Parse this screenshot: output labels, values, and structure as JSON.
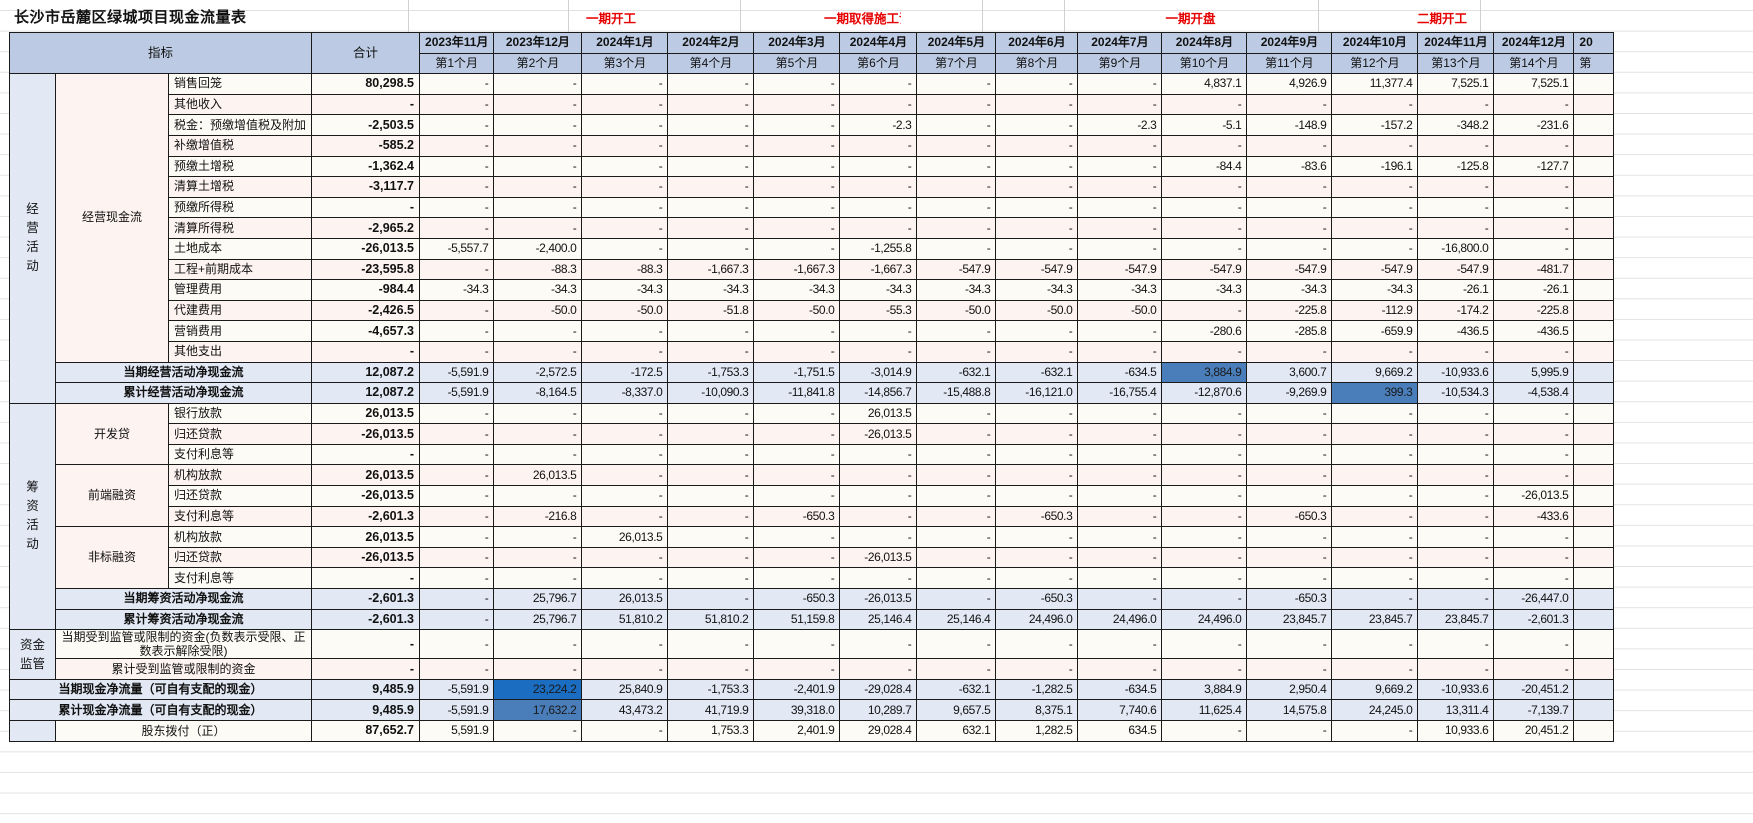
{
  "sheet": {
    "title": "长沙市岳麓区绿城项目现金流量表",
    "milestones": [
      {
        "label": "一期开工",
        "col": 2
      },
      {
        "label": "一期取得施工证",
        "col": 5
      },
      {
        "label": "一期开盘",
        "col": 9
      },
      {
        "label": "二期开工",
        "col": 12
      }
    ],
    "header": {
      "indicator": "指标",
      "total": "合计",
      "months": [
        "2023年11月",
        "2023年12月",
        "2024年1月",
        "2024年2月",
        "2024年3月",
        "2024年4月",
        "2024年5月",
        "2024年6月",
        "2024年7月",
        "2024年8月",
        "2024年9月",
        "2024年10月",
        "2024年11月",
        "2024年12月",
        "20"
      ],
      "periods": [
        "第1个月",
        "第2个月",
        "第3个月",
        "第4个月",
        "第5个月",
        "第6个月",
        "第7个月",
        "第8个月",
        "第9个月",
        "第10个月",
        "第11个月",
        "第12个月",
        "第13个月",
        "第14个月",
        "第"
      ]
    },
    "sections": {
      "operating": "经\n营\n活\n动",
      "operating_group": "经营现金流",
      "financing": "筹\n资\n活\n动",
      "dev_loan": "开发贷",
      "front_finance": "前端融资",
      "nonstd_finance": "非标融资",
      "fund_supervision": "资金\n监管"
    },
    "rows": {
      "sales": {
        "label": "销售回笼",
        "total": "80,298.5",
        "values": [
          "-",
          "-",
          "-",
          "-",
          "-",
          "-",
          "-",
          "-",
          "-",
          "4,837.1",
          "4,926.9",
          "11,377.4",
          "7,525.1",
          "7,525.1"
        ]
      },
      "other_income": {
        "label": "其他收入",
        "total": "-",
        "values": [
          "-",
          "-",
          "-",
          "-",
          "-",
          "-",
          "-",
          "-",
          "-",
          "-",
          "-",
          "-",
          "-",
          "-"
        ]
      },
      "vat_prepay": {
        "label": "税金：预缴增值税及附加",
        "total": "-2,503.5",
        "values": [
          "-",
          "-",
          "-",
          "-",
          "-",
          "-2.3",
          "-",
          "-",
          "-2.3",
          "-5.1",
          "-148.9",
          "-157.2",
          "-348.2",
          "-231.6"
        ]
      },
      "vat_supp": {
        "label": "补缴增值税",
        "total": "-585.2",
        "values": [
          "-",
          "-",
          "-",
          "-",
          "-",
          "-",
          "-",
          "-",
          "-",
          "-",
          "-",
          "-",
          "-",
          "-"
        ]
      },
      "lat_prepay": {
        "label": "预缴土增税",
        "total": "-1,362.4",
        "values": [
          "-",
          "-",
          "-",
          "-",
          "-",
          "-",
          "-",
          "-",
          "-",
          "-84.4",
          "-83.6",
          "-196.1",
          "-125.8",
          "-127.7"
        ]
      },
      "lat_settle": {
        "label": "清算土增税",
        "total": "-3,117.7",
        "values": [
          "-",
          "-",
          "-",
          "-",
          "-",
          "-",
          "-",
          "-",
          "-",
          "-",
          "-",
          "-",
          "-",
          "-"
        ]
      },
      "cit_prepay": {
        "label": "预缴所得税",
        "total": "-",
        "values": [
          "-",
          "-",
          "-",
          "-",
          "-",
          "-",
          "-",
          "-",
          "-",
          "-",
          "-",
          "-",
          "-",
          "-"
        ]
      },
      "cit_settle": {
        "label": "清算所得税",
        "total": "-2,965.2",
        "values": [
          "-",
          "-",
          "-",
          "-",
          "-",
          "-",
          "-",
          "-",
          "-",
          "-",
          "-",
          "-",
          "-",
          "-"
        ]
      },
      "land_cost": {
        "label": "土地成本",
        "total": "-26,013.5",
        "values": [
          "-5,557.7",
          "-2,400.0",
          "-",
          "-",
          "-",
          "-1,255.8",
          "-",
          "-",
          "-",
          "-",
          "-",
          "-",
          "-16,800.0",
          "-"
        ]
      },
      "construction": {
        "label": "工程+前期成本",
        "total": "-23,595.8",
        "values": [
          "-",
          "-88.3",
          "-88.3",
          "-1,667.3",
          "-1,667.3",
          "-1,667.3",
          "-547.9",
          "-547.9",
          "-547.9",
          "-547.9",
          "-547.9",
          "-547.9",
          "-547.9",
          "-481.7"
        ]
      },
      "admin": {
        "label": "管理费用",
        "total": "-984.4",
        "values": [
          "-34.3",
          "-34.3",
          "-34.3",
          "-34.3",
          "-34.3",
          "-34.3",
          "-34.3",
          "-34.3",
          "-34.3",
          "-34.3",
          "-34.3",
          "-34.3",
          "-26.1",
          "-26.1"
        ]
      },
      "agency": {
        "label": "代建费用",
        "total": "-2,426.5",
        "values": [
          "-",
          "-50.0",
          "-50.0",
          "-51.8",
          "-50.0",
          "-55.3",
          "-50.0",
          "-50.0",
          "-50.0",
          "-",
          "-225.8",
          "-112.9",
          "-174.2",
          "-225.8"
        ]
      },
      "marketing": {
        "label": "营销费用",
        "total": "-4,657.3",
        "values": [
          "-",
          "-",
          "-",
          "-",
          "-",
          "-",
          "-",
          "-",
          "-",
          "-280.6",
          "-285.8",
          "-659.9",
          "-436.5",
          "-436.5"
        ]
      },
      "other_exp": {
        "label": "其他支出",
        "total": "-",
        "values": [
          "-",
          "-",
          "-",
          "-",
          "-",
          "-",
          "-",
          "-",
          "-",
          "-",
          "-",
          "-",
          "-",
          "-"
        ]
      },
      "op_net": {
        "label": "当期经营活动净现金流",
        "total": "12,087.2",
        "values": [
          "-5,591.9",
          "-2,572.5",
          "-172.5",
          "-1,753.3",
          "-1,751.5",
          "-3,014.9",
          "-632.1",
          "-632.1",
          "-634.5",
          "3,884.9",
          "3,600.7",
          "9,669.2",
          "-10,933.6",
          "5,995.9"
        ]
      },
      "op_cum": {
        "label": "累计经营活动净现金流",
        "total": "12,087.2",
        "values": [
          "-5,591.9",
          "-8,164.5",
          "-8,337.0",
          "-10,090.3",
          "-11,841.8",
          "-14,856.7",
          "-15,488.8",
          "-16,121.0",
          "-16,755.4",
          "-12,870.6",
          "-9,269.9",
          "399.3",
          "-10,534.3",
          "-4,538.4"
        ]
      },
      "bank_loan": {
        "label": "银行放款",
        "total": "26,013.5",
        "values": [
          "-",
          "-",
          "-",
          "-",
          "-",
          "26,013.5",
          "-",
          "-",
          "-",
          "-",
          "-",
          "-",
          "-",
          "-"
        ]
      },
      "bank_repay": {
        "label": "归还贷款",
        "total": "-26,013.5",
        "values": [
          "-",
          "-",
          "-",
          "-",
          "-",
          "-26,013.5",
          "-",
          "-",
          "-",
          "-",
          "-",
          "-",
          "-",
          "-"
        ]
      },
      "bank_interest": {
        "label": "支付利息等",
        "total": "-",
        "values": [
          "-",
          "-",
          "-",
          "-",
          "-",
          "-",
          "-",
          "-",
          "-",
          "-",
          "-",
          "-",
          "-",
          "-"
        ]
      },
      "front_loan": {
        "label": "机构放款",
        "total": "26,013.5",
        "values": [
          "-",
          "26,013.5",
          "-",
          "-",
          "-",
          "-",
          "-",
          "-",
          "-",
          "-",
          "-",
          "-",
          "-",
          "-"
        ]
      },
      "front_repay": {
        "label": "归还贷款",
        "total": "-26,013.5",
        "values": [
          "-",
          "-",
          "-",
          "-",
          "-",
          "-",
          "-",
          "-",
          "-",
          "-",
          "-",
          "-",
          "-",
          "-26,013.5"
        ]
      },
      "front_interest": {
        "label": "支付利息等",
        "total": "-2,601.3",
        "values": [
          "-",
          "-216.8",
          "-",
          "-",
          "-650.3",
          "-",
          "-",
          "-650.3",
          "-",
          "-",
          "-650.3",
          "-",
          "-",
          "-433.6"
        ]
      },
      "ns_loan": {
        "label": "机构放款",
        "total": "26,013.5",
        "values": [
          "-",
          "-",
          "26,013.5",
          "-",
          "-",
          "-",
          "-",
          "-",
          "-",
          "-",
          "-",
          "-",
          "-",
          "-"
        ]
      },
      "ns_repay": {
        "label": "归还贷款",
        "total": "-26,013.5",
        "values": [
          "-",
          "-",
          "-",
          "-",
          "-",
          "-26,013.5",
          "-",
          "-",
          "-",
          "-",
          "-",
          "-",
          "-",
          "-"
        ]
      },
      "ns_interest": {
        "label": "支付利息等",
        "total": "-",
        "values": [
          "-",
          "-",
          "-",
          "-",
          "-",
          "-",
          "-",
          "-",
          "-",
          "-",
          "-",
          "-",
          "-",
          "-"
        ]
      },
      "fin_net": {
        "label": "当期筹资活动净现金流",
        "total": "-2,601.3",
        "values": [
          "-",
          "25,796.7",
          "26,013.5",
          "-",
          "-650.3",
          "-26,013.5",
          "-",
          "-650.3",
          "-",
          "-",
          "-650.3",
          "-",
          "-",
          "-26,447.0"
        ]
      },
      "fin_cum": {
        "label": "累计筹资活动净现金流",
        "total": "-2,601.3",
        "values": [
          "-",
          "25,796.7",
          "51,810.2",
          "51,810.2",
          "51,159.8",
          "25,146.4",
          "25,146.4",
          "24,496.0",
          "24,496.0",
          "24,496.0",
          "23,845.7",
          "23,845.7",
          "23,845.7",
          "-2,601.3"
        ]
      },
      "restricted": {
        "label": "当期受到监管或限制的资金(负数表示受限、正数表示解除受限)",
        "total": "-",
        "values": [
          "-",
          "-",
          "-",
          "-",
          "-",
          "-",
          "-",
          "-",
          "-",
          "-",
          "-",
          "-",
          "-",
          "-"
        ]
      },
      "restricted_cum": {
        "label": "累计受到监管或限制的资金",
        "total": "-",
        "values": [
          "-",
          "-",
          "-",
          "-",
          "-",
          "-",
          "-",
          "-",
          "-",
          "-",
          "-",
          "-",
          "-",
          "-"
        ]
      },
      "net_cash": {
        "label": "当期现金净流量（可自有支配的现金）",
        "total": "9,485.9",
        "values": [
          "-5,591.9",
          "23,224.2",
          "25,840.9",
          "-1,753.3",
          "-2,401.9",
          "-29,028.4",
          "-632.1",
          "-1,282.5",
          "-634.5",
          "3,884.9",
          "2,950.4",
          "9,669.2",
          "-10,933.6",
          "-20,451.2"
        ]
      },
      "net_cash_cum": {
        "label": "累计现金净流量（可自有支配的现金）",
        "total": "9,485.9",
        "values": [
          "-5,591.9",
          "17,632.2",
          "43,473.2",
          "41,719.9",
          "39,318.0",
          "10,289.7",
          "9,657.5",
          "8,375.1",
          "7,740.6",
          "11,625.4",
          "14,575.8",
          "24,245.0",
          "13,311.4",
          "-7,139.7"
        ]
      },
      "shareholder": {
        "label": "股东拨付（正）",
        "total": "87,652.7",
        "values": [
          "5,591.9",
          "-",
          "-",
          "1,753.3",
          "2,401.9",
          "29,028.4",
          "632.1",
          "1,282.5",
          "634.5",
          "-",
          "-",
          "-",
          "10,933.6",
          "20,451.2"
        ]
      }
    },
    "highlight_color": "#4a7ebb",
    "header_bg": "#bccbe3",
    "milestone_color": "#e60000"
  }
}
